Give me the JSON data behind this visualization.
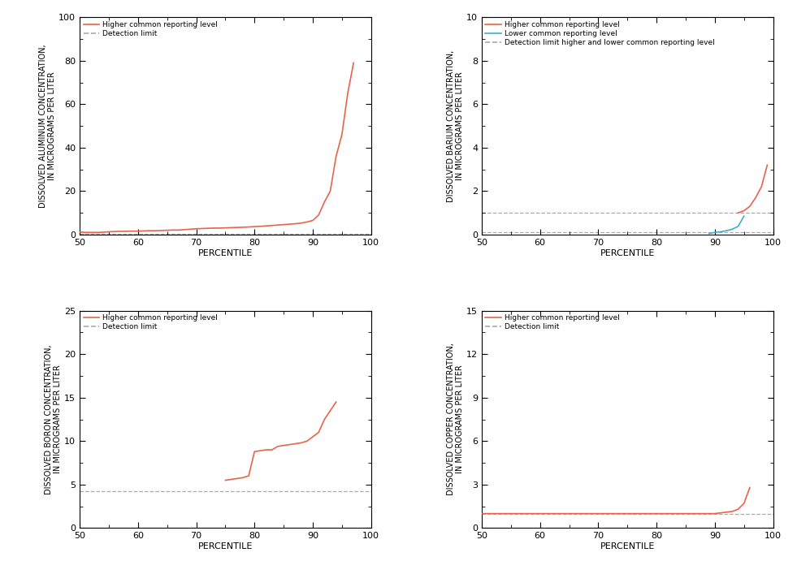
{
  "aluminum": {
    "ylabel": "DISSOLVED ALUMINUM CONCENTRATION,\nIN MICROGRAMS PER LITER",
    "ylim": [
      0,
      100
    ],
    "yticks": [
      0,
      20,
      40,
      60,
      80,
      100
    ],
    "detection_limit": 0.2,
    "higher_x": [
      50,
      51,
      52,
      53,
      54,
      55,
      56,
      57,
      58,
      59,
      60,
      61,
      62,
      63,
      64,
      65,
      66,
      67,
      68,
      69,
      70,
      71,
      72,
      73,
      74,
      75,
      76,
      77,
      78,
      79,
      80,
      81,
      82,
      83,
      84,
      85,
      86,
      87,
      88,
      89,
      90,
      91,
      92,
      93,
      94,
      95,
      96,
      97
    ],
    "higher_y": [
      1.2,
      1.0,
      1.0,
      1.0,
      1.1,
      1.3,
      1.4,
      1.5,
      1.5,
      1.6,
      1.6,
      1.7,
      1.8,
      1.8,
      1.9,
      2.0,
      2.1,
      2.1,
      2.3,
      2.5,
      2.7,
      2.8,
      2.9,
      3.0,
      3.0,
      3.1,
      3.2,
      3.3,
      3.4,
      3.5,
      3.7,
      3.8,
      4.0,
      4.2,
      4.4,
      4.6,
      4.8,
      5.0,
      5.3,
      5.8,
      6.5,
      9.0,
      15.0,
      20.0,
      36.0,
      46.0,
      65.0,
      79.0
    ],
    "legend": [
      {
        "label": "Higher common reporting level",
        "color": "#e8634a",
        "linestyle": "solid"
      },
      {
        "label": "Detection limit",
        "color": "#aaaaaa",
        "linestyle": "dashed"
      }
    ]
  },
  "barium": {
    "ylabel": "DISSOLVED BARIUM CONCENTRATION,\nIN MICROGRAMS PER LITER",
    "ylim": [
      0,
      10
    ],
    "yticks": [
      0,
      2,
      4,
      6,
      8,
      10
    ],
    "detection_limit_high": 1.0,
    "detection_limit_low": 0.1,
    "higher_x": [
      94,
      95,
      96,
      97,
      98,
      99
    ],
    "higher_y": [
      1.0,
      1.1,
      1.3,
      1.7,
      2.2,
      3.2
    ],
    "lower_x": [
      89,
      90,
      91,
      92,
      93,
      94,
      95
    ],
    "lower_y": [
      0.05,
      0.1,
      0.13,
      0.18,
      0.25,
      0.38,
      0.85
    ],
    "legend": [
      {
        "label": "Higher common reporting level",
        "color": "#e8634a",
        "linestyle": "solid"
      },
      {
        "label": "Lower common reporting level",
        "color": "#3bb0c9",
        "linestyle": "solid"
      },
      {
        "label": "Detection limit higher and lower common reporting level",
        "color": "#aaaaaa",
        "linestyle": "dashed"
      }
    ]
  },
  "boron": {
    "ylabel": "DISSOLVED BORON CONCENTRATION,\nIN MICROGRAMS PER LITER",
    "ylim": [
      0,
      25
    ],
    "yticks": [
      0,
      5,
      10,
      15,
      20,
      25
    ],
    "detection_limit": 4.2,
    "higher_x": [
      75,
      76,
      77,
      78,
      79,
      80,
      81,
      82,
      83,
      84,
      85,
      86,
      87,
      88,
      89,
      90,
      91,
      92,
      93,
      94
    ],
    "higher_y": [
      5.5,
      5.6,
      5.7,
      5.8,
      6.0,
      8.8,
      8.9,
      9.0,
      9.0,
      9.4,
      9.5,
      9.6,
      9.7,
      9.8,
      10.0,
      10.5,
      11.0,
      12.5,
      13.5,
      14.5
    ],
    "legend": [
      {
        "label": "Higher common reporting level",
        "color": "#e8634a",
        "linestyle": "solid"
      },
      {
        "label": "Detection limit",
        "color": "#aaaaaa",
        "linestyle": "dashed"
      }
    ]
  },
  "copper": {
    "ylabel": "DISSOLVED COPPER CONCENTRATION,\nIN MICROGRAMS PER LITER",
    "ylim": [
      0,
      15
    ],
    "yticks": [
      0,
      3,
      6,
      9,
      12,
      15
    ],
    "detection_limit": 1.0,
    "higher_x": [
      50,
      51,
      52,
      53,
      54,
      55,
      56,
      57,
      58,
      59,
      60,
      61,
      62,
      63,
      64,
      65,
      66,
      67,
      68,
      69,
      70,
      71,
      72,
      73,
      74,
      75,
      76,
      77,
      78,
      79,
      80,
      81,
      82,
      83,
      84,
      85,
      86,
      87,
      88,
      89,
      90,
      91,
      92,
      93,
      94,
      95,
      96
    ],
    "higher_y": [
      1.0,
      1.0,
      1.0,
      1.0,
      1.0,
      1.0,
      1.0,
      1.0,
      1.0,
      1.0,
      1.0,
      1.0,
      1.0,
      1.0,
      1.0,
      1.0,
      1.0,
      1.0,
      1.0,
      1.0,
      1.0,
      1.0,
      1.0,
      1.0,
      1.0,
      1.0,
      1.0,
      1.0,
      1.0,
      1.0,
      1.0,
      1.0,
      1.0,
      1.0,
      1.0,
      1.0,
      1.0,
      1.0,
      1.0,
      1.0,
      1.0,
      1.05,
      1.1,
      1.15,
      1.3,
      1.7,
      2.8
    ],
    "legend": [
      {
        "label": "Higher common reporting level",
        "color": "#e8634a",
        "linestyle": "solid"
      },
      {
        "label": "Detection limit",
        "color": "#aaaaaa",
        "linestyle": "dashed"
      }
    ]
  },
  "xlabel": "PERCENTILE",
  "xlim": [
    50,
    100
  ],
  "xticks": [
    50,
    60,
    70,
    80,
    90,
    100
  ]
}
